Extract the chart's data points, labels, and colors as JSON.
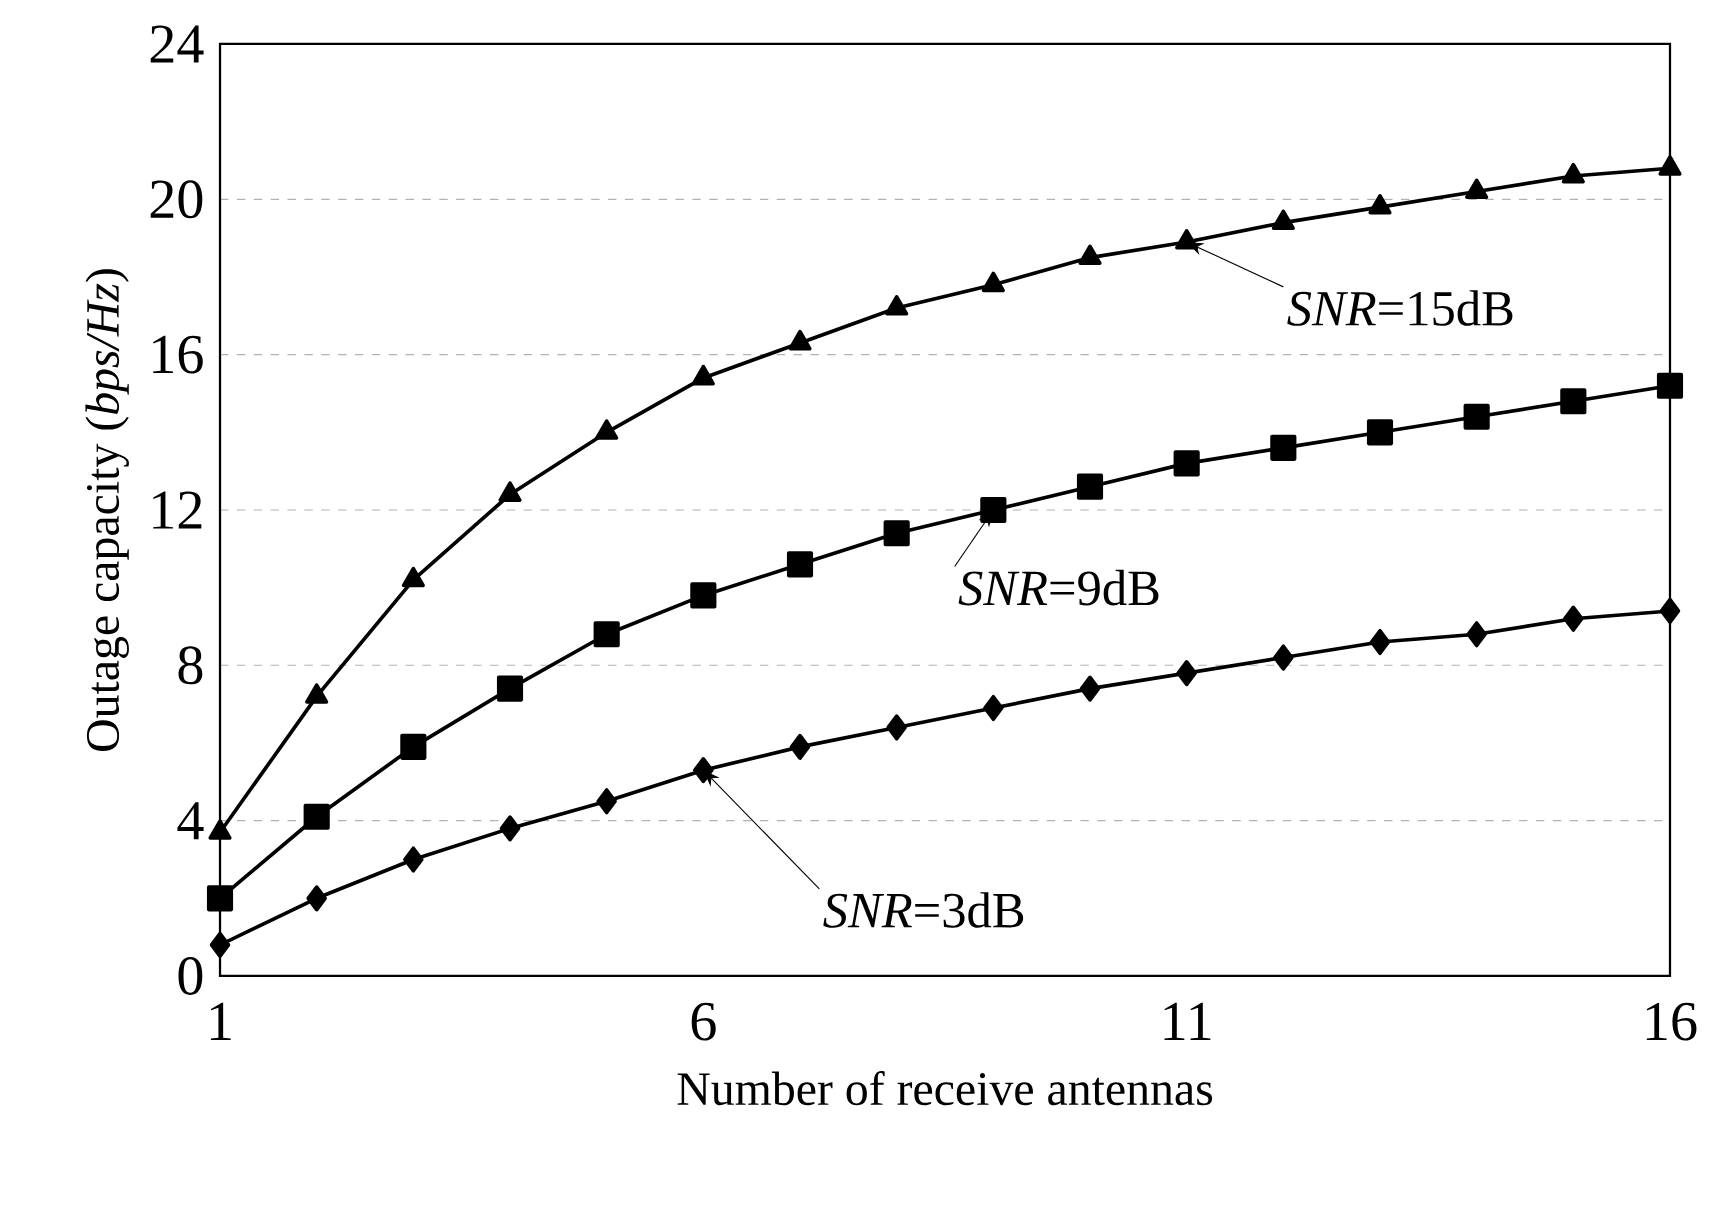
{
  "chart_data": {
    "type": "line",
    "xlabel": "Number of receive antennas",
    "ylabel": "Outage capacity (*bps/Hz*)",
    "x": [
      1,
      2,
      3,
      4,
      5,
      6,
      7,
      8,
      9,
      10,
      11,
      12,
      13,
      14,
      15,
      16
    ],
    "series": [
      {
        "color": "#000000",
        "marker": "triangle",
        "values": [
          3.7,
          7.2,
          10.2,
          12.4,
          14.0,
          15.4,
          16.3,
          17.2,
          17.8,
          18.5,
          18.9,
          19.4,
          19.8,
          20.2,
          20.6,
          20.8
        ]
      },
      {
        "color": "#000000",
        "marker": "square",
        "values": [
          2.0,
          4.1,
          5.9,
          7.4,
          8.8,
          9.8,
          10.6,
          11.4,
          12.0,
          12.6,
          13.2,
          13.6,
          14.0,
          14.4,
          14.8,
          15.2
        ]
      },
      {
        "color": "#000000",
        "marker": "diamond",
        "values": [
          0.8,
          2.0,
          3.0,
          3.8,
          4.5,
          5.3,
          5.9,
          6.4,
          6.9,
          7.4,
          7.8,
          8.2,
          8.6,
          8.8,
          9.2,
          9.4
        ]
      }
    ],
    "annotations": [
      {
        "text": "*SNR*=15dB",
        "x": 11,
        "y": 18.9
      },
      {
        "text": "*SNR*=9dB",
        "x": 9,
        "y": 12.0
      },
      {
        "text": "*SNR*=3dB",
        "x": 6,
        "y": 5.3
      }
    ],
    "xlim": [
      1,
      16
    ],
    "xticks": [
      1,
      6,
      11,
      16
    ],
    "ylim": [
      0,
      24
    ],
    "yticks": [
      0,
      4,
      8,
      12,
      16,
      20,
      24
    ],
    "grid": "y",
    "line_style": "solid"
  }
}
